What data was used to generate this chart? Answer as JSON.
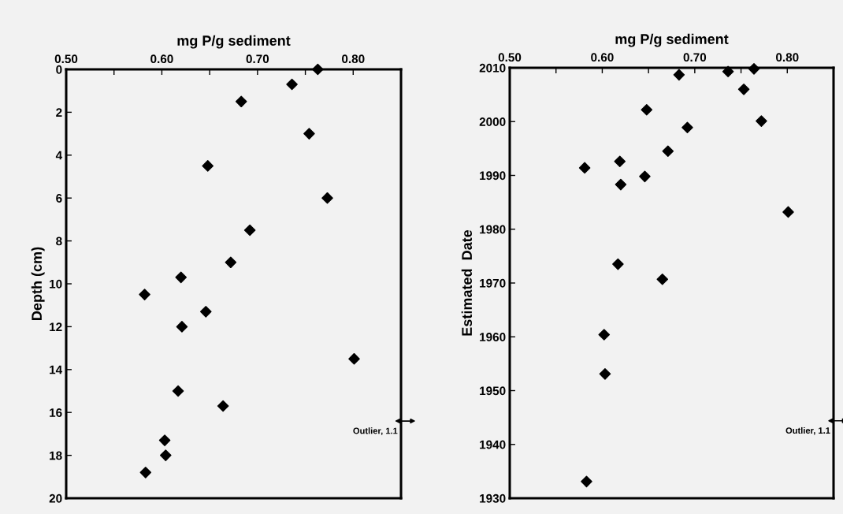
{
  "chart_data": [
    {
      "type": "scatter",
      "xlabel": "mg P/g sediment",
      "ylabel": "Depth (cm)",
      "marker": "diamond",
      "grid": false,
      "legend": false,
      "xlim": [
        0.5,
        0.85
      ],
      "xticks": [
        {
          "value": 0.5,
          "label": "0.50"
        },
        {
          "value": 0.55,
          "label": null
        },
        {
          "value": 0.6,
          "label": "0.60"
        },
        {
          "value": 0.65,
          "label": null
        },
        {
          "value": 0.7,
          "label": "0.70"
        },
        {
          "value": 0.75,
          "label": null
        },
        {
          "value": 0.8,
          "label": "0.80"
        }
      ],
      "ylim": [
        20,
        0
      ],
      "yticks": [
        0,
        2,
        4,
        6,
        8,
        10,
        12,
        14,
        16,
        18,
        20
      ],
      "annotations": [
        "Outlier, 1.1"
      ],
      "series": [
        {
          "color": "#000000",
          "x": [
            0.763,
            0.736,
            0.683,
            0.754,
            0.648,
            0.773,
            0.692,
            0.672,
            0.62,
            0.582,
            0.646,
            0.621,
            0.801,
            0.617,
            0.664,
            0.603,
            0.604,
            0.583
          ],
          "values": [
            0,
            0.7,
            1.5,
            3.0,
            4.5,
            6.0,
            7.5,
            9.0,
            9.7,
            10.5,
            11.3,
            12.0,
            13.5,
            15.0,
            15.7,
            17.3,
            18.0,
            18.8
          ]
        }
      ]
    },
    {
      "type": "scatter",
      "xlabel": "mg P/g sediment",
      "ylabel": "Estimated  Date",
      "marker": "diamond",
      "grid": false,
      "legend": false,
      "xlim": [
        0.5,
        0.85
      ],
      "xticks": [
        {
          "value": 0.5,
          "label": "0.50"
        },
        {
          "value": 0.55,
          "label": null
        },
        {
          "value": 0.6,
          "label": "0.60"
        },
        {
          "value": 0.65,
          "label": null
        },
        {
          "value": 0.7,
          "label": "0.70"
        },
        {
          "value": 0.75,
          "label": null
        },
        {
          "value": 0.8,
          "label": "0.80"
        }
      ],
      "ylim": [
        1930,
        2010
      ],
      "yticks": [
        1930,
        1940,
        1950,
        1960,
        1970,
        1980,
        1990,
        2000,
        2010
      ],
      "annotations": [
        "Outlier, 1.1"
      ],
      "series": [
        {
          "color": "#000000",
          "x": [
            0.764,
            0.736,
            0.683,
            0.753,
            0.648,
            0.772,
            0.692,
            0.671,
            0.619,
            0.581,
            0.646,
            0.62,
            0.801,
            0.617,
            0.665,
            0.602,
            0.603,
            0.583
          ],
          "values": [
            2009.8,
            2009.3,
            2008.7,
            2006.0,
            2002.2,
            2000.1,
            1998.9,
            1994.5,
            1992.6,
            1991.4,
            1989.8,
            1988.3,
            1983.2,
            1973.5,
            1970.7,
            1960.4,
            1953.1,
            1933.1
          ]
        }
      ]
    }
  ]
}
